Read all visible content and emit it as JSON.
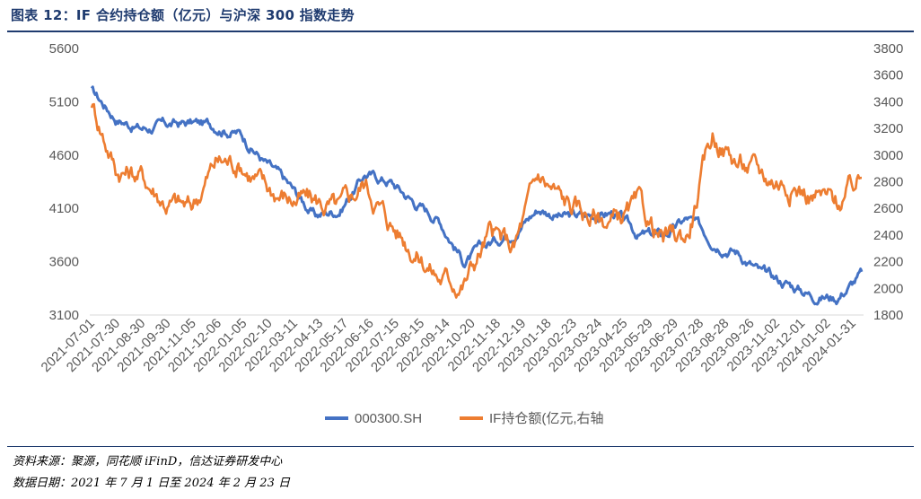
{
  "title": "图表 12：IF 合约持仓额（亿元）与沪深 300 指数走势",
  "footnote": {
    "source": "资料来源：聚源，同花顺 iFinD，信达证券研发中心",
    "date": "数据日期：2021 年 7 月 1 日至 2024 年 2 月 23 日"
  },
  "colors": {
    "index": "#4472c4",
    "oi": "#ed7d31",
    "axis": "#d9d9d9",
    "text": "#595959",
    "title": "#1f3b6f"
  },
  "chart_data": {
    "type": "line",
    "title": "IF 合约持仓额（亿元）与沪深 300 指数走势",
    "grid": false,
    "legend_position": "bottom",
    "x_tick_labels": [
      "2021-07-01",
      "2021-07-30",
      "2021-08-30",
      "2021-09-30",
      "2021-11-05",
      "2021-12-06",
      "2022-01-05",
      "2022-02-10",
      "2022-03-11",
      "2022-04-13",
      "2022-05-17",
      "2022-06-16",
      "2022-07-15",
      "2022-08-15",
      "2022-09-14",
      "2022-10-20",
      "2022-11-18",
      "2022-12-19",
      "2023-01-18",
      "2023-02-23",
      "2023-03-24",
      "2023-04-25",
      "2023-05-29",
      "2023-06-29",
      "2023-07-28",
      "2023-08-28",
      "2023-09-26",
      "2023-11-02",
      "2023-12-01",
      "2024-01-02",
      "2024-01-31"
    ],
    "y_left": {
      "ylim": [
        3100,
        5600
      ],
      "ticks": [
        3100,
        3600,
        4100,
        4600,
        5100,
        5600
      ]
    },
    "y_right": {
      "ylim": [
        1800,
        3800
      ],
      "ticks": [
        1800,
        2000,
        2200,
        2400,
        2600,
        2800,
        3000,
        3200,
        3400,
        3600,
        3800
      ]
    },
    "x": [
      "2021-07-01",
      "2021-07-30",
      "2021-08-30",
      "2021-09-30",
      "2021-11-05",
      "2021-12-06",
      "2022-01-05",
      "2022-02-10",
      "2022-03-11",
      "2022-04-13",
      "2022-05-17",
      "2022-06-16",
      "2022-07-15",
      "2022-08-15",
      "2022-09-14",
      "2022-10-20",
      "2022-11-18",
      "2022-12-19",
      "2023-01-18",
      "2023-02-23",
      "2023-03-24",
      "2023-04-25",
      "2023-05-29",
      "2023-06-29",
      "2023-07-28",
      "2023-08-28",
      "2023-09-26",
      "2023-11-02",
      "2023-12-01",
      "2024-01-02",
      "2024-01-31",
      "2024-02-23"
    ],
    "series": [
      {
        "name": "000300.SH",
        "axis": "left",
        "values": [
          5200,
          4950,
          4850,
          4880,
          4900,
          4880,
          4800,
          4530,
          4300,
          4030,
          4090,
          4420,
          4360,
          4160,
          4000,
          3600,
          3770,
          3900,
          4100,
          4020,
          4030,
          4060,
          3850,
          3840,
          4000,
          3810,
          3700,
          3480,
          3400,
          3290,
          3270,
          3480
        ]
      },
      {
        "name": "IF持仓额(亿元,右轴",
        "axis": "right",
        "values": [
          3400,
          2900,
          2850,
          2650,
          2600,
          2950,
          2950,
          2750,
          2680,
          2650,
          2580,
          2800,
          2500,
          2300,
          2080,
          2050,
          2400,
          2300,
          2850,
          2650,
          2550,
          2500,
          2600,
          2350,
          2400,
          3150,
          2950,
          2850,
          2800,
          2700,
          2640,
          2820
        ]
      }
    ]
  }
}
